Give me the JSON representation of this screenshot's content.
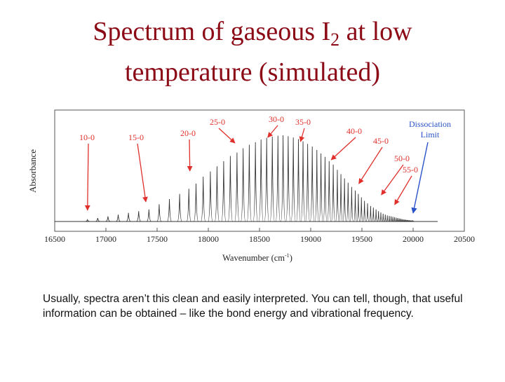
{
  "title": {
    "line1_pre": "Spectrum of gaseous I",
    "subscript": "2",
    "line1_post": " at low",
    "line2": "temperature (simulated)"
  },
  "caption": "Usually, spectra aren’t this clean and easily interpreted.  You can tell, though, that useful information can be obtained – like the bond energy and vibrational frequency.",
  "colors": {
    "title": "#8b0a16",
    "annotation_red": "#e0302c",
    "annotation_blue": "#2a52c8",
    "trace": "#333333"
  },
  "chart_data": {
    "type": "line",
    "xlabel": "Wavenumber (cm",
    "xlabel_sup": "-1",
    "xlabel_close": ")",
    "ylabel": "Absorbance",
    "xlim": [
      16500,
      20500
    ],
    "xticks": [
      16500,
      17000,
      17500,
      18000,
      18500,
      19000,
      19500,
      20000,
      20500
    ],
    "grid": false,
    "series": [
      {
        "x": [
          16820,
          16920,
          17020,
          17120,
          17220,
          17320,
          17420,
          17520,
          17620,
          17720,
          17810,
          17880,
          17950,
          18020,
          18085,
          18150,
          18215,
          18280,
          18340,
          18400,
          18460,
          18515,
          18570,
          18625,
          18680,
          18730,
          18780,
          18830,
          18880,
          18925,
          18970,
          19015,
          19060,
          19100,
          19140,
          19180,
          19220,
          19260,
          19295,
          19330,
          19365,
          19400,
          19435,
          19465,
          19495,
          19525,
          19555,
          19585,
          19612,
          19638,
          19662,
          19685,
          19707,
          19728,
          19748,
          19767,
          19785,
          19802,
          19818,
          19834,
          19849,
          19864,
          19878,
          19891,
          19904,
          19916,
          19928,
          19939,
          19950,
          19960,
          19970,
          19979,
          19988,
          19996,
          20004
        ],
        "y": [
          0.02,
          0.04,
          0.06,
          0.08,
          0.1,
          0.12,
          0.14,
          0.2,
          0.26,
          0.32,
          0.38,
          0.44,
          0.52,
          0.58,
          0.64,
          0.7,
          0.76,
          0.8,
          0.85,
          0.89,
          0.92,
          0.95,
          0.97,
          0.985,
          0.995,
          1.0,
          0.99,
          0.975,
          0.955,
          0.93,
          0.9,
          0.87,
          0.83,
          0.79,
          0.75,
          0.7,
          0.66,
          0.6,
          0.55,
          0.5,
          0.45,
          0.4,
          0.36,
          0.32,
          0.28,
          0.24,
          0.21,
          0.18,
          0.16,
          0.14,
          0.12,
          0.105,
          0.09,
          0.08,
          0.07,
          0.065,
          0.06,
          0.055,
          0.05,
          0.045,
          0.04,
          0.036,
          0.032,
          0.028,
          0.025,
          0.022,
          0.02,
          0.018,
          0.016,
          0.014,
          0.012,
          0.01,
          0.008,
          0.006,
          0.004
        ]
      }
    ],
    "annotations": [
      {
        "text": "10-0",
        "x": 16820,
        "color": "red"
      },
      {
        "text": "15-0",
        "x": 17390,
        "color": "red"
      },
      {
        "text": "20-0",
        "x": 17820,
        "color": "red"
      },
      {
        "text": "25-0",
        "x": 18260,
        "color": "red"
      },
      {
        "text": "30-0",
        "x": 18580,
        "color": "red"
      },
      {
        "text": "35-0",
        "x": 18900,
        "color": "red"
      },
      {
        "text": "40-0",
        "x": 19200,
        "color": "red"
      },
      {
        "text": "45-0",
        "x": 19470,
        "color": "red"
      },
      {
        "text": "50-0",
        "x": 19690,
        "color": "red"
      },
      {
        "text": "55-0",
        "x": 19820,
        "color": "red"
      },
      {
        "text": "Dissociation Limit",
        "line1": "Dissociation",
        "line2": "Limit",
        "x": 20000,
        "color": "blue"
      }
    ]
  }
}
